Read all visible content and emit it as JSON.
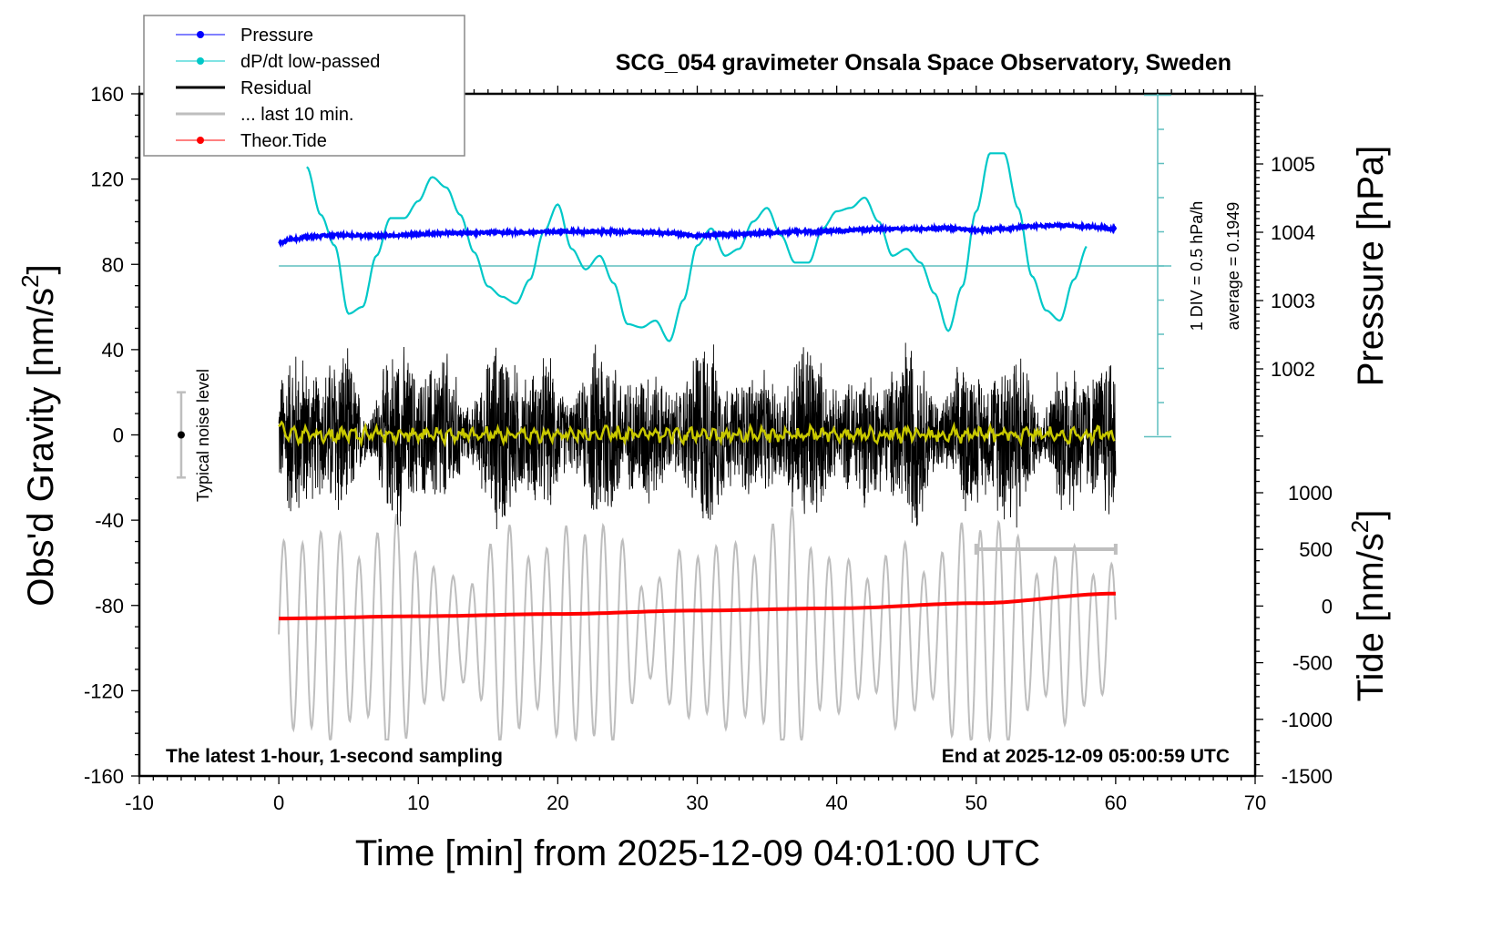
{
  "chart_data": {
    "type": "line",
    "title": "SCG_054 gravimeter Onsala Space Observatory, Sweden",
    "xlabel": "Time [min] from 2025-12-09 04:01:00 UTC",
    "ylabel_left": "Obs'd Gravity [nm/s",
    "ylabel_left_sup": "2",
    "ylabel_left_end": "]",
    "ylabel_right_top": "Pressure [hPa]",
    "ylabel_right_bottom": "Tide [nm/s",
    "ylabel_right_bottom_sup": "2",
    "ylabel_right_bottom_end": "]",
    "xlim": [
      -10,
      70
    ],
    "ylim_left": [
      -160,
      160
    ],
    "x_ticks": [
      "-10",
      "0",
      "10",
      "20",
      "30",
      "40",
      "50",
      "60",
      "70"
    ],
    "x_tick_values": [
      -10,
      0,
      10,
      20,
      30,
      40,
      50,
      60,
      70
    ],
    "y_left_ticks": [
      "160",
      "120",
      "80",
      "40",
      "0",
      "-40",
      "-80",
      "-120",
      "-160"
    ],
    "y_left_tick_values": [
      160,
      120,
      80,
      40,
      0,
      -40,
      -80,
      -120,
      -160
    ],
    "pressure_axis": {
      "ticks": [
        "1005",
        "1004",
        "1003",
        "1002"
      ],
      "tick_values": [
        1005,
        1004,
        1003,
        1002
      ]
    },
    "tide_axis": {
      "ticks": [
        "1000",
        "500",
        "0",
        "-500",
        "-1000",
        "-1500"
      ],
      "tick_values": [
        1000,
        500,
        0,
        -500,
        -1000,
        -1500
      ]
    },
    "dpdt_scale": {
      "div_label": "1 DIV = 0.5 hPa/h",
      "average_label": "average = 0.1949",
      "hpa_per_hour_per_div": 0.5,
      "divisions_up": 5,
      "divisions_down": 5
    },
    "legend": {
      "placement": "top-left",
      "entries": [
        {
          "label": "Pressure",
          "color": "#0000ff",
          "marker": true
        },
        {
          "label": "dP/dt low-passed",
          "color": "#00c8c8",
          "marker": true
        },
        {
          "label": "Residual",
          "color": "#000000",
          "marker": false
        },
        {
          "label": "... last 10 min.",
          "color": "#bebebe",
          "marker": false
        },
        {
          "label": "Theor.Tide",
          "color": "#ff0000",
          "marker": true
        }
      ]
    },
    "annotations": {
      "bottom_left": "The latest 1-hour, 1-second sampling",
      "bottom_right": "End at 2025-12-09 05:00:59 UTC",
      "noise_label": "Typical noise level",
      "noise_bar": {
        "x": -7,
        "center": 0,
        "half_range": 20
      },
      "last10_bracket": {
        "x_start": 50,
        "x_end": 60
      }
    },
    "series": [
      {
        "name": "Pressure",
        "axis": "pressure_hPa",
        "color": "#0000ff",
        "x": [
          0,
          1,
          2,
          4,
          6,
          8,
          10,
          12,
          14,
          16,
          18,
          20,
          22,
          24,
          26,
          28,
          30,
          32,
          34,
          36,
          38,
          40,
          42,
          44,
          46,
          48,
          50,
          52,
          54,
          56,
          58,
          60
        ],
        "values": [
          1003.85,
          1003.9,
          1003.93,
          1003.96,
          1003.95,
          1003.95,
          1003.97,
          1003.99,
          1003.99,
          1004.0,
          1004.0,
          1004.01,
          1004.01,
          1004.01,
          1004.0,
          1003.99,
          1003.95,
          1003.97,
          1003.98,
          1004.0,
          1004.01,
          1004.02,
          1004.04,
          1004.05,
          1004.05,
          1004.06,
          1004.03,
          1004.05,
          1004.09,
          1004.1,
          1004.08,
          1004.05
        ]
      },
      {
        "name": "dP/dt low-passed",
        "axis": "dpdt_divisions",
        "color": "#00c8c8",
        "x": [
          2,
          3,
          4,
          5,
          6,
          7,
          8,
          9,
          10,
          11,
          12,
          13,
          14,
          15,
          16,
          17,
          18,
          19,
          20,
          21,
          22,
          23,
          24,
          25,
          26,
          27,
          28,
          29,
          30,
          31,
          32,
          33,
          34,
          35,
          36,
          37,
          38,
          39,
          40,
          41,
          42,
          43,
          44,
          45,
          46,
          47,
          48,
          49,
          50,
          51,
          52,
          53,
          54,
          55,
          56,
          57,
          58
        ],
        "values": [
          2.9,
          1.5,
          0.6,
          -1.4,
          -1.2,
          0.3,
          1.4,
          1.4,
          1.9,
          2.6,
          2.3,
          1.5,
          0.4,
          -0.6,
          -0.9,
          -1.1,
          -0.4,
          1.0,
          1.8,
          0.5,
          -0.1,
          0.3,
          -0.5,
          -1.7,
          -1.8,
          -1.6,
          -2.2,
          -1.0,
          0.6,
          1.1,
          0.3,
          0.5,
          1.3,
          1.7,
          0.9,
          0.1,
          0.1,
          1.1,
          1.6,
          1.7,
          2.0,
          1.3,
          0.3,
          0.5,
          0.1,
          -0.8,
          -1.9,
          -0.6,
          1.6,
          3.3,
          3.3,
          1.7,
          -0.3,
          -1.3,
          -1.6,
          -0.4,
          0.6
        ]
      },
      {
        "name": "Residual",
        "axis": "gravity_nm_s2",
        "color": "#000000",
        "x_range": [
          0,
          60
        ],
        "envelope_amplitude": 35,
        "low_passed_mean": 0
      },
      {
        "name": "Residual low-passed",
        "axis": "gravity_nm_s2",
        "color": "#c8c800",
        "x_range": [
          0,
          60
        ],
        "envelope_amplitude": 4,
        "start_value": 6
      },
      {
        "name": "... last 10 min.",
        "axis": "tide_nm_s2",
        "color": "#bebebe",
        "x_range": [
          0,
          60
        ],
        "envelope_amplitude": 900
      },
      {
        "name": "Theor.Tide",
        "axis": "tide_nm_s2",
        "color": "#ff0000",
        "x": [
          0,
          10,
          20,
          30,
          40,
          50,
          60
        ],
        "values": [
          -110,
          -90,
          -70,
          -40,
          -20,
          25,
          110
        ]
      }
    ]
  }
}
